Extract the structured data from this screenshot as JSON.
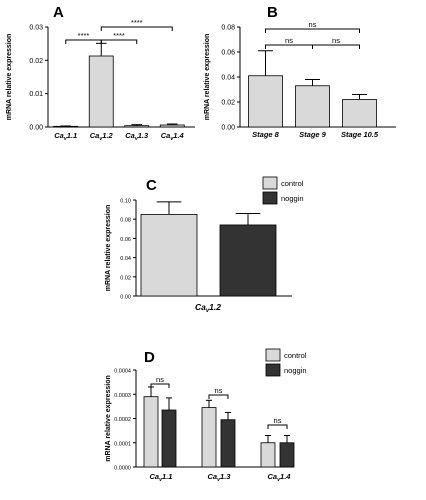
{
  "chart_data": [
    {
      "panel_label": "A",
      "type": "bar",
      "ylabel": "mRNA relative expression",
      "ylim": [
        0,
        0.03
      ],
      "yticks": [
        "0.00",
        "0.01",
        "0.02",
        "0.03"
      ],
      "categories": [
        {
          "base": "Ca",
          "sub": "v",
          "suffix": "1.1"
        },
        {
          "base": "Ca",
          "sub": "v",
          "suffix": "1.2"
        },
        {
          "base": "Ca",
          "sub": "v",
          "suffix": "1.3"
        },
        {
          "base": "Ca",
          "sub": "v",
          "suffix": "1.4"
        }
      ],
      "series": [
        {
          "color": "#d9d9d9",
          "values": [
            0.0002,
            0.0213,
            0.0004,
            0.0006
          ],
          "errors": [
            0.0001,
            0.0038,
            0.0003,
            0.0003
          ]
        }
      ],
      "significance": [
        {
          "from": 0,
          "to": 1,
          "label": "****"
        },
        {
          "from": 1,
          "to": 2,
          "label": "****"
        },
        {
          "from": 1,
          "to": 3,
          "label": "****"
        }
      ]
    },
    {
      "panel_label": "B",
      "type": "bar",
      "ylabel": "mRNA relative expression",
      "ylim": [
        0,
        0.08
      ],
      "yticks": [
        "0.00",
        "0.02",
        "0.04",
        "0.06",
        "0.08"
      ],
      "categories": [
        "Stage 8",
        "Stage 9",
        "Stage 10.5"
      ],
      "series": [
        {
          "color": "#d9d9d9",
          "values": [
            0.041,
            0.033,
            0.022
          ],
          "errors": [
            0.02,
            0.005,
            0.004
          ]
        }
      ],
      "significance": [
        {
          "from": 0,
          "to": 1,
          "label": "ns"
        },
        {
          "from": 1,
          "to": 2,
          "label": "ns"
        },
        {
          "from": 0,
          "to": 2,
          "label": "ns"
        }
      ]
    },
    {
      "panel_label": "C",
      "type": "bar",
      "ylabel": "mRNA relative expression",
      "ylim": [
        0,
        0.1
      ],
      "yticks": [
        "0.00",
        "0.02",
        "0.04",
        "0.06",
        "0.08",
        "0.10"
      ],
      "categories": [
        {
          "base": "Ca",
          "sub": "v",
          "suffix": "1.2"
        }
      ],
      "series": [
        {
          "name": "control",
          "color": "#d9d9d9",
          "values": [
            0.085
          ],
          "errors": [
            0.013
          ]
        },
        {
          "name": "noggin",
          "color": "#333333",
          "values": [
            0.074
          ],
          "errors": [
            0.012
          ]
        }
      ],
      "significance": []
    },
    {
      "panel_label": "D",
      "type": "bar",
      "ylabel": "mRNA relative expression",
      "ylim": [
        0,
        0.0004
      ],
      "yticks": [
        "0.0000",
        "0.0001",
        "0.0002",
        "0.0003",
        "0.0004"
      ],
      "categories": [
        {
          "base": "Ca",
          "sub": "v",
          "suffix": "1.1"
        },
        {
          "base": "Ca",
          "sub": "v",
          "suffix": "1.3"
        },
        {
          "base": "Ca",
          "sub": "v",
          "suffix": "1.4"
        }
      ],
      "series": [
        {
          "name": "control",
          "color": "#d9d9d9",
          "values": [
            0.00029,
            0.000245,
            0.0001
          ],
          "errors": [
            4e-05,
            3e-05,
            3e-05
          ]
        },
        {
          "name": "noggin",
          "color": "#333333",
          "values": [
            0.000235,
            0.000195,
            0.0001
          ],
          "errors": [
            5e-05,
            3e-05,
            3e-05
          ]
        }
      ],
      "significance": [
        {
          "category": 0,
          "label": "ns"
        },
        {
          "category": 1,
          "label": "ns"
        },
        {
          "category": 2,
          "label": "ns"
        }
      ]
    }
  ]
}
